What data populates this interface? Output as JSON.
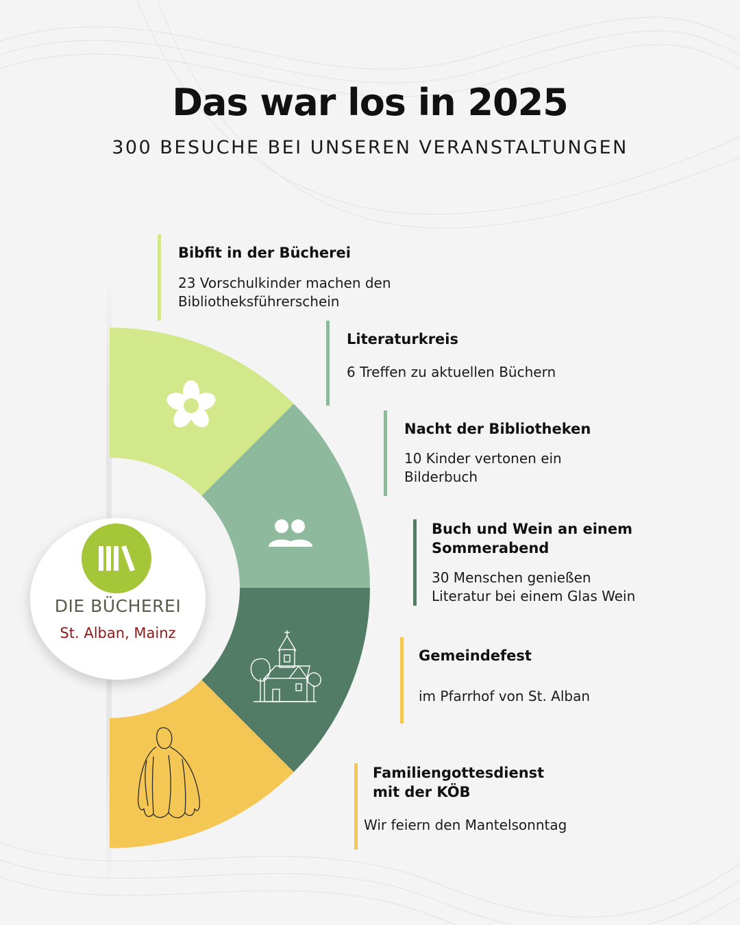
{
  "title": "Das war los in 2025",
  "subtitle": "300 BESUCHE BEI UNSEREN VERANSTALTUNGEN",
  "logo": {
    "name": "DIE BÜCHEREI",
    "place": "St. Alban, Mainz"
  },
  "colors": {
    "light_green": "#d3e88a",
    "sage": "#8fb99c",
    "dark_green": "#527c66",
    "yellow": "#f4c653",
    "logo_green": "#a6c63a",
    "logo_red": "#8b1a1a"
  },
  "segments": [
    {
      "icon": "flower-icon",
      "color": "#d3e88a"
    },
    {
      "icon": "people-icon",
      "color": "#8fb99c"
    },
    {
      "icon": "church-icon",
      "color": "#527c66"
    },
    {
      "icon": "cloak-icon",
      "color": "#f4c653"
    }
  ],
  "events": [
    {
      "name": "Bibfit in der Bücherei",
      "desc_1": "23 Vorschulkinder machen den",
      "desc_2": "Bibliotheksführerschein",
      "color": "#d3e88a"
    },
    {
      "name": "Literaturkreis",
      "desc_1": "6 Treffen zu aktuellen Büchern",
      "color": "#8fb99c"
    },
    {
      "name": "Nacht der Bibliotheken",
      "desc_1": "10 Kinder vertonen ein",
      "desc_2": "Bilderbuch",
      "color": "#8fb99c"
    },
    {
      "name_1": "Buch und Wein an einem",
      "name_2": "Sommerabend",
      "desc_1": "30 Menschen genießen",
      "desc_2": "Literatur bei einem Glas Wein",
      "color": "#527c66"
    },
    {
      "name": "Gemeindefest",
      "desc_1": "im Pfarrhof von St. Alban",
      "color": "#f4c653"
    },
    {
      "name_1": "Familiengottesdienst",
      "name_2": "mit der KÖB",
      "desc_1": "Wir feiern den Mantelsonntag",
      "color": "#f4c653"
    }
  ]
}
